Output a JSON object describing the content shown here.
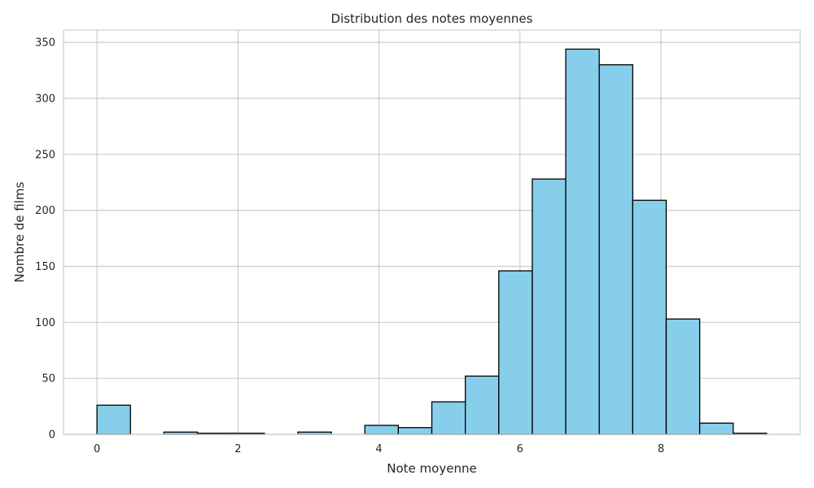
{
  "chart_data": {
    "type": "bar",
    "title": "Distribution des notes moyennes",
    "xlabel": "Note moyenne",
    "ylabel": "Nombre de films",
    "xlim": [
      -0.475,
      9.975
    ],
    "ylim": [
      0,
      361
    ],
    "xticks": [
      0,
      2,
      4,
      6,
      8
    ],
    "yticks": [
      0,
      50,
      100,
      150,
      200,
      250,
      300,
      350
    ],
    "grid": true,
    "bins": {
      "edges": [
        0.0,
        0.475,
        0.95,
        1.425,
        1.9,
        2.375,
        2.85,
        3.325,
        3.8,
        4.275,
        4.75,
        5.225,
        5.7,
        6.175,
        6.65,
        7.125,
        7.6,
        8.075,
        8.55,
        9.025,
        9.5
      ],
      "counts": [
        26,
        0,
        2,
        1,
        1,
        0,
        2,
        0,
        8,
        6,
        29,
        52,
        146,
        228,
        344,
        330,
        209,
        103,
        10,
        1
      ]
    },
    "colors": {
      "bar_fill": "#87ceeb",
      "bar_edge": "#000000"
    }
  }
}
